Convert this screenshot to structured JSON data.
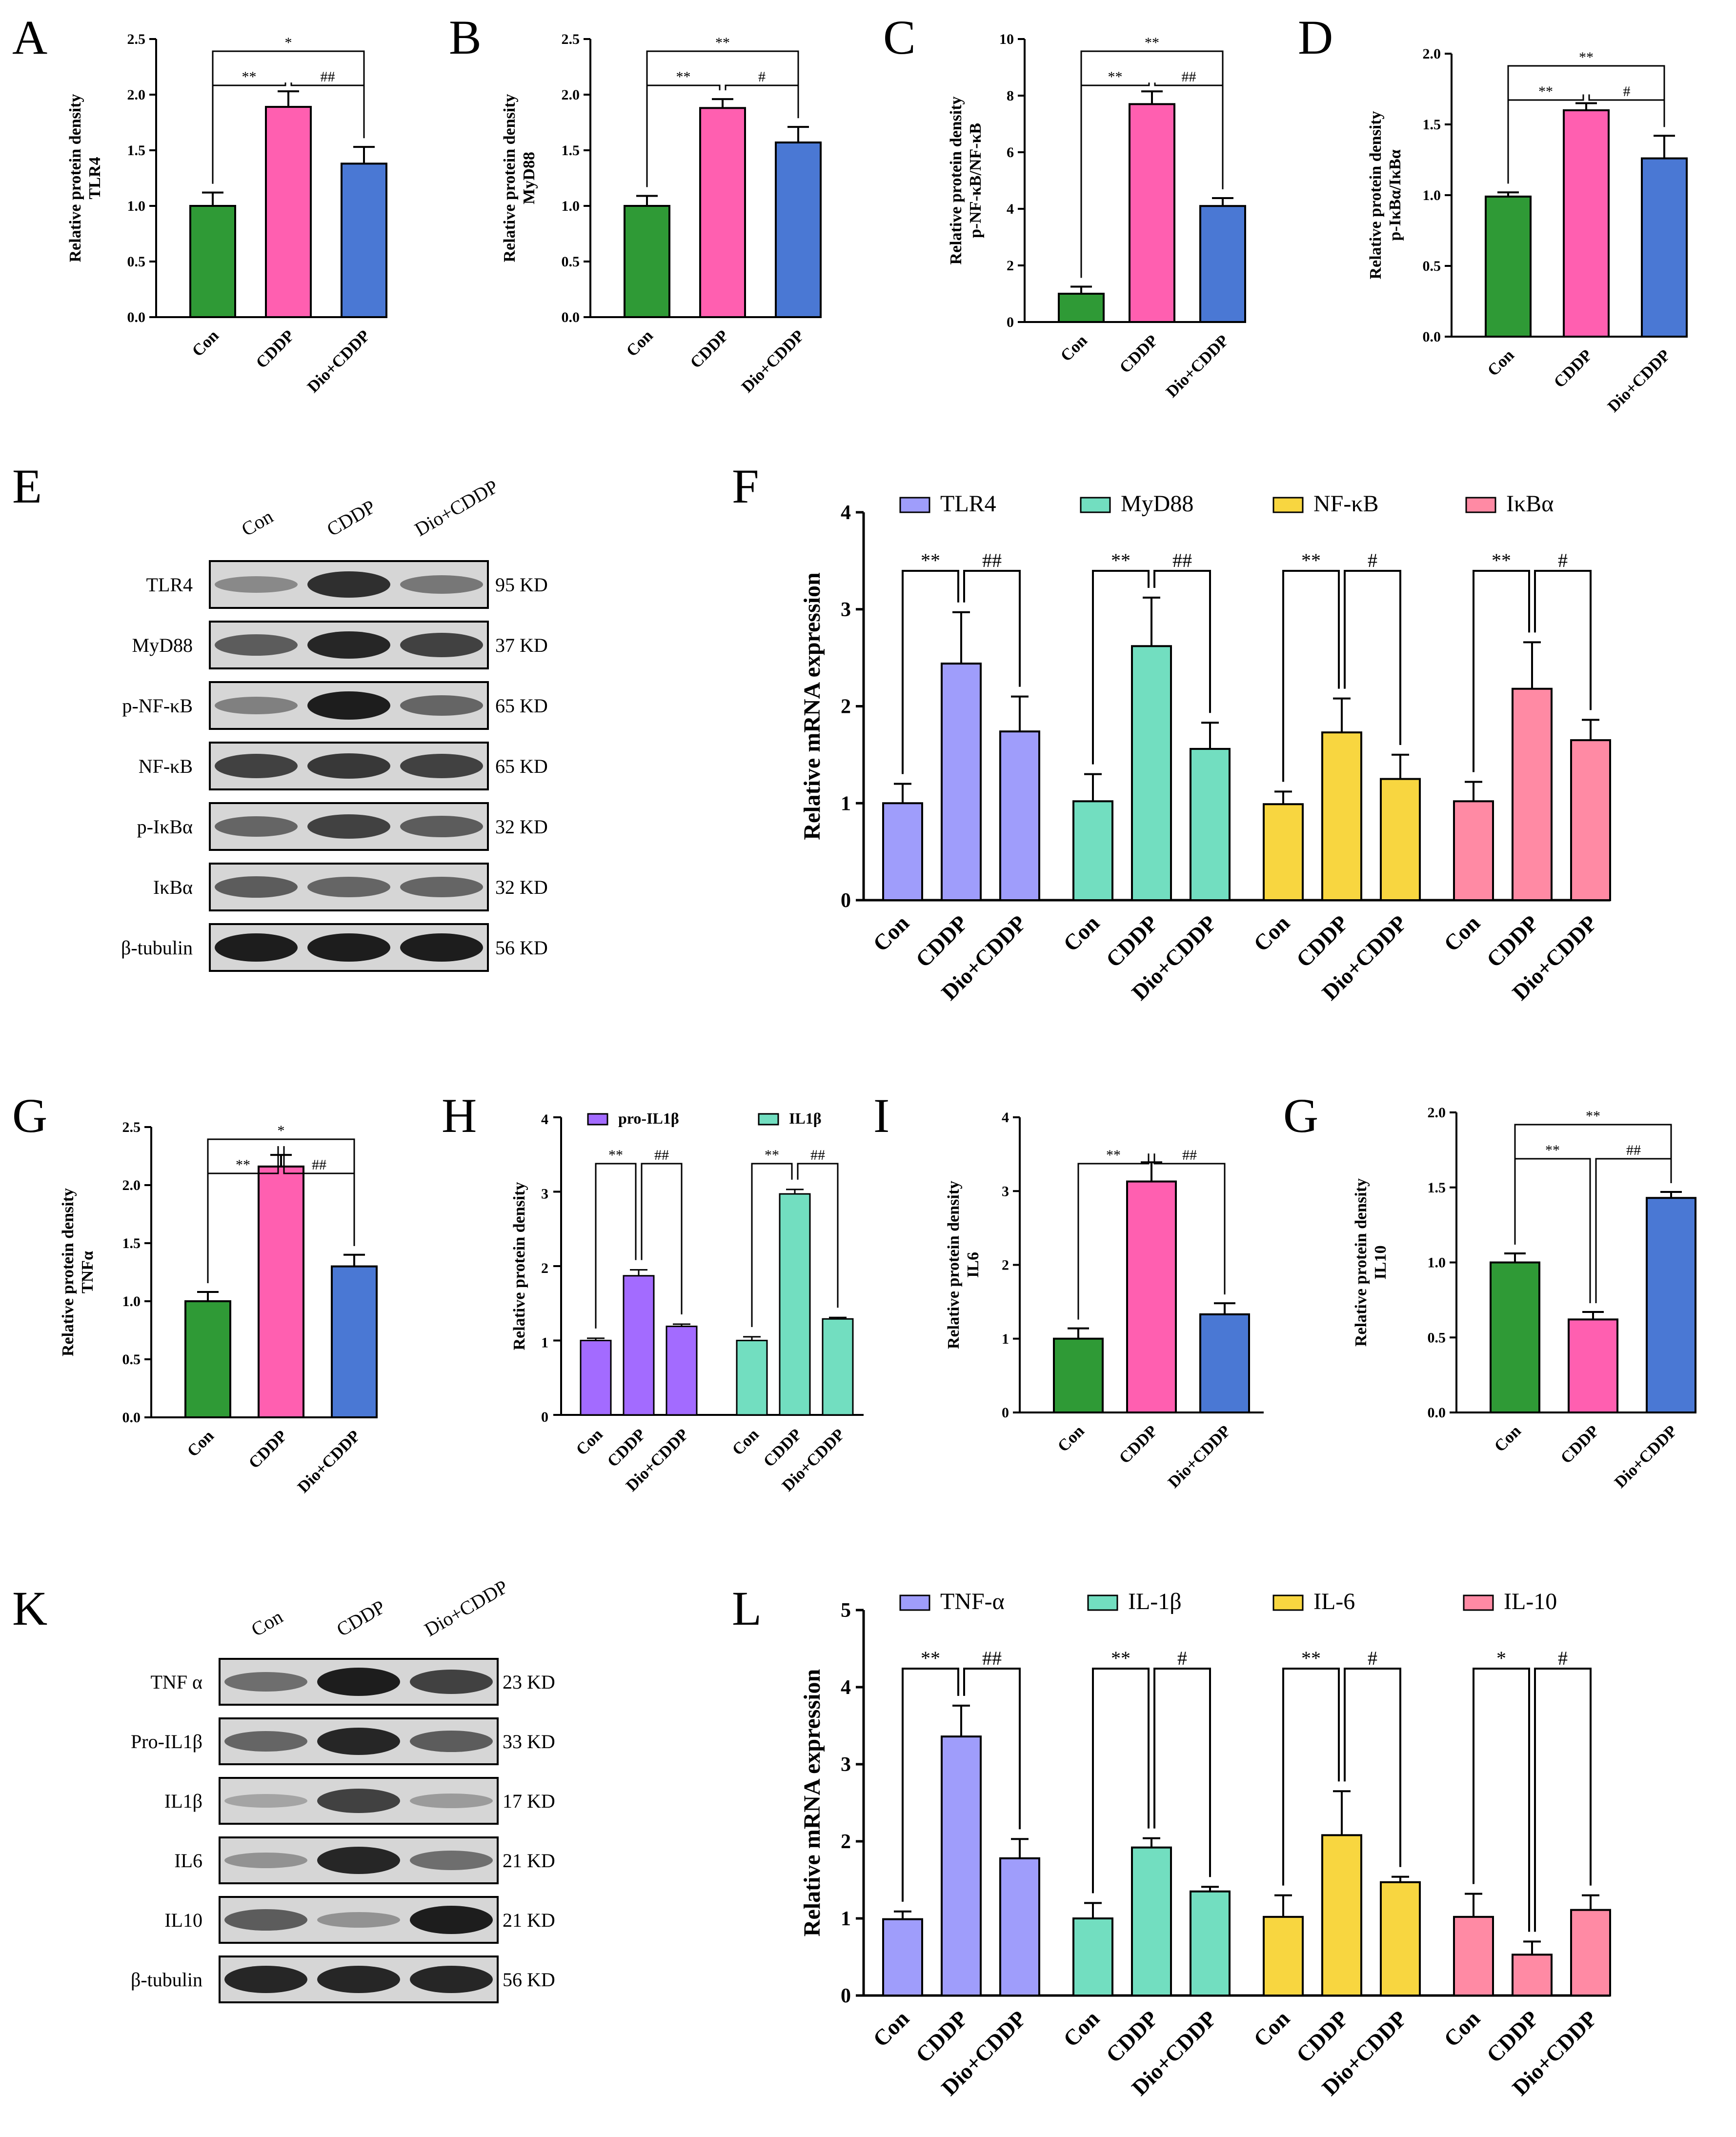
{
  "colors": {
    "con_small": "#2f9a36",
    "cddp_small": "#ff5fb0",
    "dio_small": "#4a78d4",
    "tlr4": "#9f9dfb",
    "myd88": "#72dec0",
    "nfkb": "#f8d640",
    "ikba": "#ff8aa4",
    "tnf": "#9f9dfb",
    "il1b": "#72dec0",
    "il6": "#f8d640",
    "il10": "#ff8aa4",
    "proil1b": "#a36bff",
    "il1b_h": "#72dec0"
  },
  "panels": {
    "A": "A",
    "B": "B",
    "C": "C",
    "D": "D",
    "E": "E",
    "F": "F",
    "G": "G",
    "H": "H",
    "I": "I",
    "G2": "G",
    "K": "K",
    "L": "L"
  },
  "chart_data": [
    {
      "id": "A",
      "type": "bar",
      "ylabel_line1": "Relative protein density",
      "ylabel_line2": "TLR4",
      "categories": [
        "Con",
        "CDDP",
        "Dio+CDDP"
      ],
      "values": [
        1.0,
        1.89,
        1.38
      ],
      "errors": [
        0.12,
        0.14,
        0.15
      ],
      "ylim": [
        0,
        2.5
      ],
      "yticks": [
        "0.0",
        "0.5",
        "1.0",
        "1.5",
        "2.0",
        "2.5"
      ],
      "sig": [
        {
          "a": 0,
          "b": 1,
          "label": "**"
        },
        {
          "a": 1,
          "b": 2,
          "label": "##"
        },
        {
          "a": 0,
          "b": 2,
          "label": "*"
        }
      ]
    },
    {
      "id": "B",
      "type": "bar",
      "ylabel_line1": "Relative protein density",
      "ylabel_line2": "MyD88",
      "categories": [
        "Con",
        "CDDP",
        "Dio+CDDP"
      ],
      "values": [
        1.0,
        1.88,
        1.57
      ],
      "errors": [
        0.09,
        0.08,
        0.14
      ],
      "ylim": [
        0,
        2.5
      ],
      "yticks": [
        "0.0",
        "0.5",
        "1.0",
        "1.5",
        "2.0",
        "2.5"
      ],
      "sig": [
        {
          "a": 0,
          "b": 1,
          "label": "**"
        },
        {
          "a": 1,
          "b": 2,
          "label": "#"
        },
        {
          "a": 0,
          "b": 2,
          "label": "**"
        }
      ]
    },
    {
      "id": "C",
      "type": "bar",
      "ylabel_line1": "Relative protein density",
      "ylabel_line2": "p-NF-κB/NF-κB",
      "categories": [
        "Con",
        "CDDP",
        "Dio+CDDP"
      ],
      "values": [
        1.0,
        7.7,
        4.1
      ],
      "errors": [
        0.25,
        0.45,
        0.28
      ],
      "ylim": [
        0,
        10
      ],
      "yticks": [
        "0",
        "2",
        "4",
        "6",
        "8",
        "10"
      ],
      "sig": [
        {
          "a": 0,
          "b": 1,
          "label": "**"
        },
        {
          "a": 1,
          "b": 2,
          "label": "##"
        },
        {
          "a": 0,
          "b": 2,
          "label": "**"
        }
      ]
    },
    {
      "id": "D",
      "type": "bar",
      "ylabel_line1": "Relative protein density",
      "ylabel_line2": "p-IκBα/IκBα",
      "categories": [
        "Con",
        "CDDP",
        "Dio+CDDP"
      ],
      "values": [
        0.99,
        1.6,
        1.26
      ],
      "errors": [
        0.03,
        0.05,
        0.16
      ],
      "ylim": [
        0,
        2.0
      ],
      "yticks": [
        "0.0",
        "0.5",
        "1.0",
        "1.5",
        "2.0"
      ],
      "sig": [
        {
          "a": 0,
          "b": 1,
          "label": "**"
        },
        {
          "a": 1,
          "b": 2,
          "label": "#"
        },
        {
          "a": 0,
          "b": 2,
          "label": "**"
        }
      ]
    },
    {
      "id": "F",
      "type": "bar",
      "ylabel": "Relative mRNA expression",
      "ylim": [
        0,
        4
      ],
      "yticks": [
        "0",
        "1",
        "2",
        "3",
        "4"
      ],
      "categories": [
        "Con",
        "CDDP",
        "Dio+CDDP"
      ],
      "series": [
        {
          "name": "TLR4",
          "values": [
            1.0,
            2.44,
            1.74
          ],
          "errors": [
            0.2,
            0.53,
            0.36
          ],
          "sig2": "##",
          "sig1": "**"
        },
        {
          "name": "MyD88",
          "values": [
            1.02,
            2.62,
            1.56
          ],
          "errors": [
            0.28,
            0.5,
            0.27
          ],
          "sig2": "##",
          "sig1": "**"
        },
        {
          "name": "NF-κB",
          "values": [
            0.99,
            1.73,
            1.25
          ],
          "errors": [
            0.13,
            0.35,
            0.25
          ],
          "sig2": "#",
          "sig1": "**"
        },
        {
          "name": "IκBα",
          "values": [
            1.02,
            2.18,
            1.65
          ],
          "errors": [
            0.2,
            0.48,
            0.21
          ],
          "sig2": "#",
          "sig1": "**"
        }
      ]
    },
    {
      "id": "G",
      "type": "bar",
      "ylabel_line1": "Relative protein density",
      "ylabel_line2": "TNFα",
      "categories": [
        "Con",
        "CDDP",
        "Dio+CDDP"
      ],
      "values": [
        1.0,
        2.16,
        1.3
      ],
      "errors": [
        0.08,
        0.1,
        0.1
      ],
      "ylim": [
        0,
        2.5
      ],
      "yticks": [
        "0.0",
        "0.5",
        "1.0",
        "1.5",
        "2.0",
        "2.5"
      ],
      "sig": [
        {
          "a": 0,
          "b": 1,
          "label": "**"
        },
        {
          "a": 1,
          "b": 2,
          "label": "##"
        },
        {
          "a": 0,
          "b": 2,
          "label": "*"
        }
      ]
    },
    {
      "id": "H",
      "type": "bar",
      "ylabel": "Relative protein density",
      "ylim": [
        0,
        4
      ],
      "yticks": [
        "0",
        "1",
        "2",
        "3",
        "4"
      ],
      "categories": [
        "Con",
        "CDDP",
        "Dio+CDDP"
      ],
      "series": [
        {
          "name": "pro-IL1β",
          "values": [
            1.0,
            1.87,
            1.19
          ],
          "errors": [
            0.03,
            0.08,
            0.03
          ],
          "sig1": "**",
          "sig2": "##"
        },
        {
          "name": "IL1β",
          "values": [
            1.0,
            2.97,
            1.29
          ],
          "errors": [
            0.05,
            0.06,
            0.02
          ],
          "sig1": "**",
          "sig2": "##"
        }
      ]
    },
    {
      "id": "I",
      "type": "bar",
      "ylabel_line1": "Relative protein density",
      "ylabel_line2": "IL6",
      "categories": [
        "Con",
        "CDDP",
        "Dio+CDDP"
      ],
      "values": [
        1.0,
        3.13,
        1.33
      ],
      "errors": [
        0.14,
        0.26,
        0.15
      ],
      "ylim": [
        0,
        4
      ],
      "yticks": [
        "0",
        "1",
        "2",
        "3",
        "4"
      ],
      "sig": [
        {
          "a": 0,
          "b": 1,
          "label": "**"
        },
        {
          "a": 1,
          "b": 2,
          "label": "##"
        }
      ]
    },
    {
      "id": "G2",
      "type": "bar",
      "ylabel_line1": "Relative protein density",
      "ylabel_line2": "IL10",
      "categories": [
        "Con",
        "CDDP",
        "Dio+CDDP"
      ],
      "values": [
        1.0,
        0.62,
        1.43
      ],
      "errors": [
        0.06,
        0.05,
        0.04
      ],
      "ylim": [
        0,
        2.0
      ],
      "yticks": [
        "0.0",
        "0.5",
        "1.0",
        "1.5",
        "2.0"
      ],
      "sig": [
        {
          "a": 0,
          "b": 1,
          "label": "**"
        },
        {
          "a": 1,
          "b": 2,
          "label": "##"
        },
        {
          "a": 0,
          "b": 2,
          "label": "**"
        }
      ]
    },
    {
      "id": "L",
      "type": "bar",
      "ylabel": "Relative mRNA expression",
      "ylim": [
        0,
        5
      ],
      "yticks": [
        "0",
        "1",
        "2",
        "3",
        "4",
        "5"
      ],
      "categories": [
        "Con",
        "CDDP",
        "Dio+CDDP"
      ],
      "series": [
        {
          "name": "TNF-α",
          "values": [
            0.99,
            3.36,
            1.78
          ],
          "errors": [
            0.1,
            0.4,
            0.25
          ],
          "sig1": "**",
          "sig2": "##"
        },
        {
          "name": "IL-1β",
          "values": [
            1.0,
            1.92,
            1.35
          ],
          "errors": [
            0.2,
            0.12,
            0.06
          ],
          "sig1": "**",
          "sig2": "#"
        },
        {
          "name": "IL-6",
          "values": [
            1.02,
            2.08,
            1.47
          ],
          "errors": [
            0.28,
            0.57,
            0.07
          ],
          "sig1": "**",
          "sig2": "#"
        },
        {
          "name": "IL-10",
          "values": [
            1.02,
            0.53,
            1.11
          ],
          "errors": [
            0.3,
            0.17,
            0.19
          ],
          "sig1": "*",
          "sig2": "#"
        }
      ]
    }
  ],
  "westerns": [
    {
      "id": "E",
      "columns": [
        "Con",
        "CDDP",
        "Dio+CDDP"
      ],
      "rows": [
        {
          "label": "TLR4",
          "kd": "95 KD",
          "intensity": [
            0.35,
            0.85,
            0.45
          ]
        },
        {
          "label": "MyD88",
          "kd": "37 KD",
          "intensity": [
            0.6,
            0.9,
            0.75
          ]
        },
        {
          "label": "p-NF-κB",
          "kd": "65 KD",
          "intensity": [
            0.4,
            0.95,
            0.55
          ]
        },
        {
          "label": "NF-κB",
          "kd": "65 KD",
          "intensity": [
            0.75,
            0.8,
            0.75
          ]
        },
        {
          "label": "p-IκBα",
          "kd": "32 KD",
          "intensity": [
            0.55,
            0.75,
            0.6
          ]
        },
        {
          "label": "IκBα",
          "kd": "32 KD",
          "intensity": [
            0.6,
            0.55,
            0.55
          ]
        },
        {
          "label": "β-tubulin",
          "kd": "56 KD",
          "intensity": [
            0.95,
            0.95,
            0.95
          ]
        }
      ]
    },
    {
      "id": "K",
      "columns": [
        "Con",
        "CDDP",
        "Dio+CDDP"
      ],
      "rows": [
        {
          "label": "TNF α",
          "kd": "23 KD",
          "intensity": [
            0.5,
            0.95,
            0.75
          ]
        },
        {
          "label": "Pro-IL1β",
          "kd": "33 KD",
          "intensity": [
            0.55,
            0.9,
            0.6
          ]
        },
        {
          "label": "IL1β",
          "kd": "17 KD",
          "intensity": [
            0.2,
            0.75,
            0.25
          ]
        },
        {
          "label": "IL6",
          "kd": "21 KD",
          "intensity": [
            0.3,
            0.9,
            0.5
          ]
        },
        {
          "label": "IL10",
          "kd": "21 KD",
          "intensity": [
            0.6,
            0.3,
            0.95
          ]
        },
        {
          "label": "β-tubulin",
          "kd": "56 KD",
          "intensity": [
            0.9,
            0.9,
            0.9
          ]
        }
      ]
    }
  ]
}
